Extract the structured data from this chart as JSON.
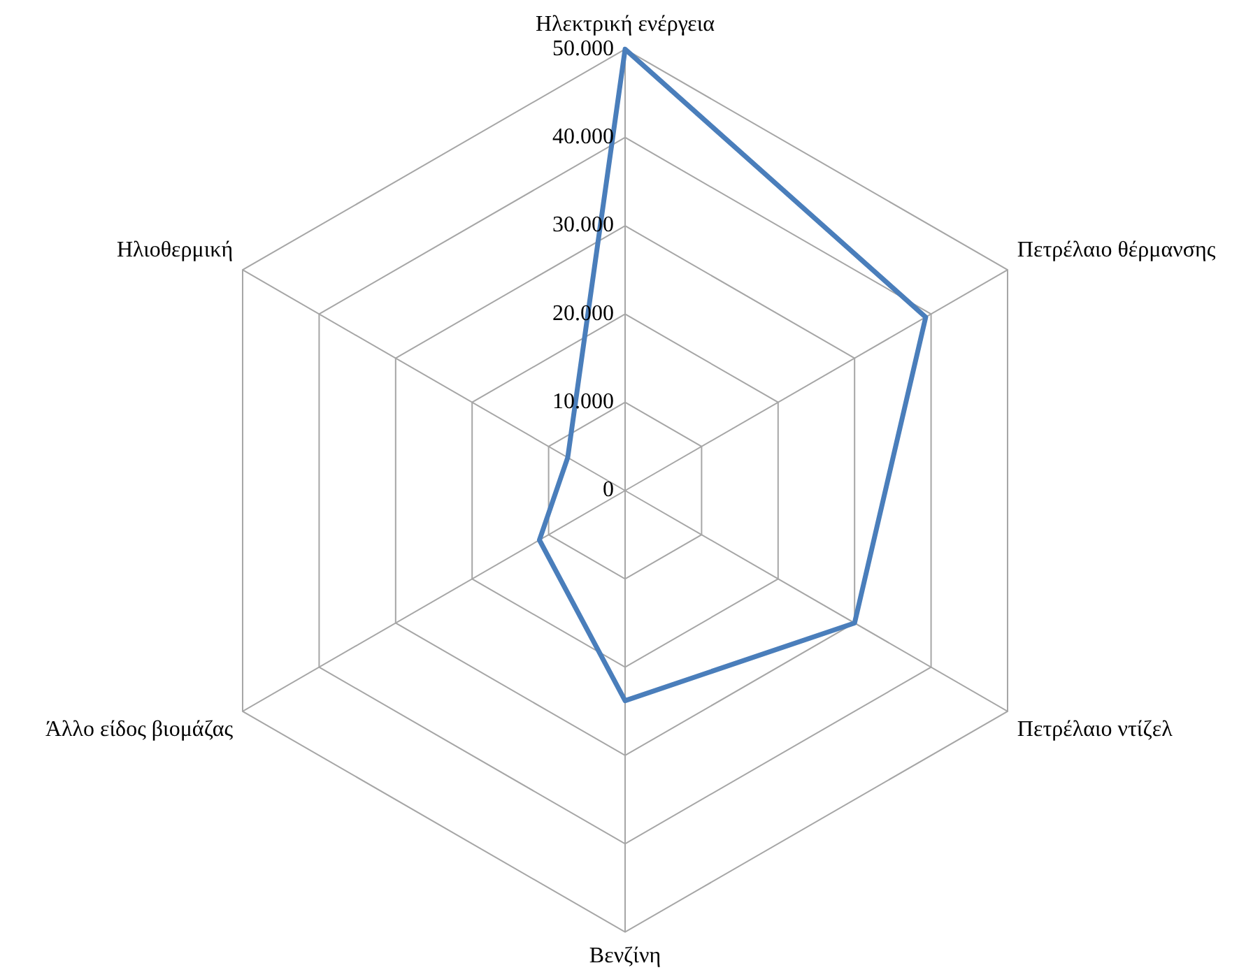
{
  "chart_data": {
    "type": "radar",
    "categories": [
      "Ηλεκτρική ενέργεια",
      "Πετρέλαιο θέρμανσης",
      "Πετρέλαιο ντίζελ",
      "Βενζίνη",
      "Άλλο είδος βιομάζας",
      "Ηλιοθερμική"
    ],
    "series": [
      {
        "color": "#4a7ebb",
        "values": [
          50000,
          39300,
          30000,
          23800,
          11200,
          7500
        ]
      }
    ],
    "ylim": [
      0,
      50000
    ],
    "yticks": [
      0,
      {
        "value": 10000,
        "label": "10.000"
      },
      {
        "value": 20000,
        "label": "20.000"
      },
      {
        "value": 30000,
        "label": "30.000"
      },
      {
        "value": 40000,
        "label": "40.000"
      },
      {
        "value": 50000,
        "label": "50.000"
      }
    ],
    "grid": true,
    "legend": false,
    "marker": "none"
  }
}
